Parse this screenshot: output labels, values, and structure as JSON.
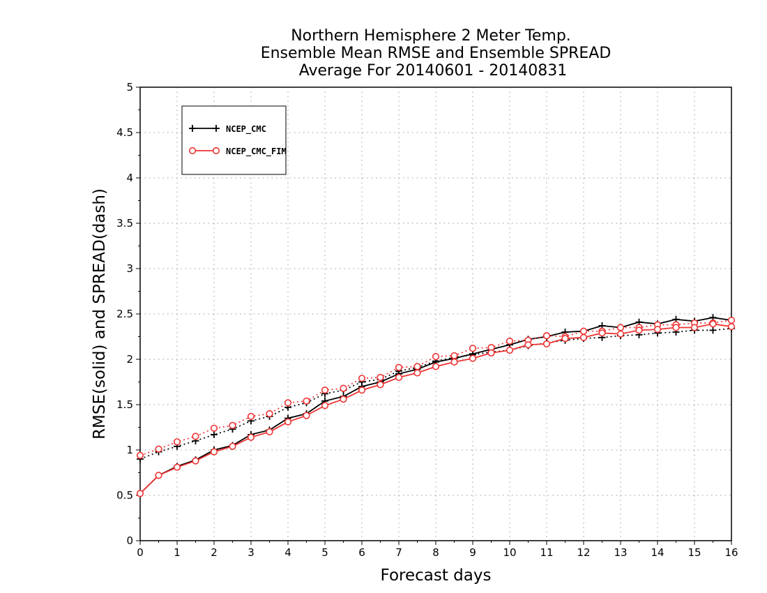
{
  "chart_data": {
    "type": "line",
    "title": [
      "Northern Hemisphere 2 Meter Temp.",
      "Ensemble Mean RMSE and Ensemble SPREAD",
      "Average For 20140601 - 20140831"
    ],
    "xlabel": "Forecast days",
    "ylabel": "RMSE(solid) and SPREAD(dash)",
    "xlim": [
      0,
      16
    ],
    "ylim": [
      0,
      5
    ],
    "x_ticks": [
      "0",
      "1",
      "2",
      "3",
      "4",
      "5",
      "6",
      "7",
      "8",
      "9",
      "10",
      "11",
      "12",
      "13",
      "14",
      "15",
      "16"
    ],
    "y_ticks": [
      "0",
      "0.5",
      "1",
      "1.5",
      "2",
      "2.5",
      "3",
      "3.5",
      "4",
      "4.5",
      "5"
    ],
    "grid": true,
    "legend_position": "top-left",
    "x": [
      0,
      0.5,
      1,
      1.5,
      2,
      2.5,
      3,
      3.5,
      4,
      4.5,
      5,
      5.5,
      6,
      6.5,
      7,
      7.5,
      8,
      8.5,
      9,
      9.5,
      10,
      10.5,
      11,
      11.5,
      12,
      12.5,
      13,
      13.5,
      14,
      14.5,
      15,
      15.5,
      16
    ],
    "series": [
      {
        "name": "NCEP_CMC",
        "color": "#000000",
        "marker": "plus",
        "rmse": [
          0.52,
          0.72,
          0.82,
          0.89,
          1.0,
          1.05,
          1.17,
          1.22,
          1.35,
          1.4,
          1.54,
          1.59,
          1.7,
          1.75,
          1.84,
          1.89,
          1.97,
          2.01,
          2.06,
          2.11,
          2.16,
          2.22,
          2.25,
          2.3,
          2.31,
          2.37,
          2.35,
          2.41,
          2.39,
          2.44,
          2.42,
          2.46,
          2.43
        ],
        "spread": [
          0.9,
          0.98,
          1.04,
          1.1,
          1.17,
          1.23,
          1.32,
          1.37,
          1.47,
          1.52,
          1.62,
          1.66,
          1.75,
          1.78,
          1.87,
          1.91,
          1.98,
          2.02,
          2.05,
          2.08,
          2.1,
          2.15,
          2.18,
          2.21,
          2.23,
          2.24,
          2.26,
          2.27,
          2.29,
          2.3,
          2.32,
          2.32,
          2.34
        ]
      },
      {
        "name": "NCEP_CMC_FIM",
        "color": "#ee3333",
        "marker": "circle",
        "rmse": [
          0.52,
          0.72,
          0.81,
          0.88,
          0.98,
          1.04,
          1.14,
          1.2,
          1.31,
          1.38,
          1.49,
          1.56,
          1.66,
          1.72,
          1.8,
          1.85,
          1.92,
          1.97,
          2.01,
          2.07,
          2.1,
          2.16,
          2.17,
          2.23,
          2.24,
          2.29,
          2.28,
          2.32,
          2.33,
          2.35,
          2.35,
          2.39,
          2.36
        ],
        "spread": [
          0.94,
          1.01,
          1.09,
          1.15,
          1.24,
          1.27,
          1.37,
          1.4,
          1.52,
          1.54,
          1.66,
          1.68,
          1.79,
          1.8,
          1.91,
          1.92,
          2.03,
          2.04,
          2.12,
          2.13,
          2.2,
          2.21,
          2.26,
          2.25,
          2.31,
          2.31,
          2.35,
          2.35,
          2.38,
          2.38,
          2.4,
          2.4,
          2.43
        ]
      }
    ]
  }
}
